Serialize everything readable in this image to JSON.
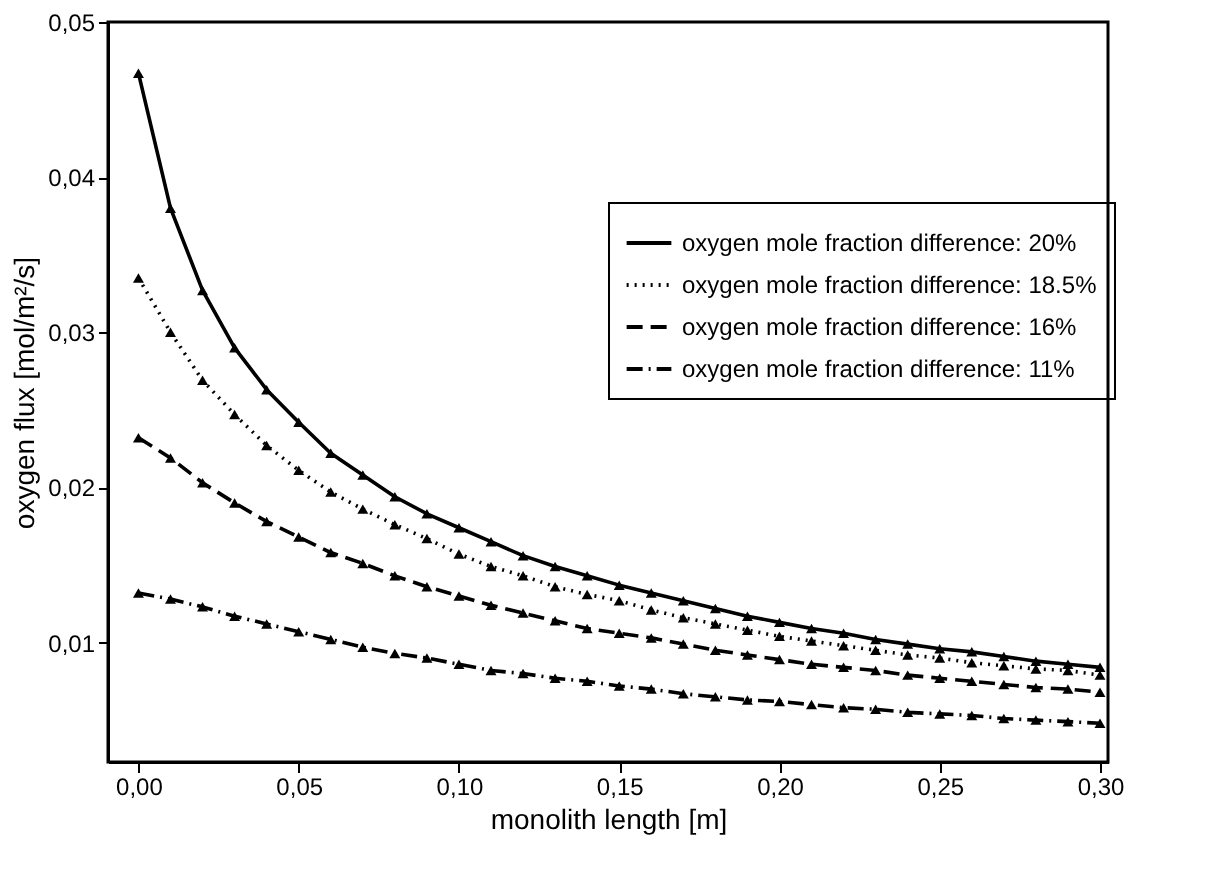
{
  "chart_data": {
    "type": "line",
    "xlabel": "monolith length [m]",
    "ylabel": "oxygen flux [mol/m²/s]",
    "x": [
      0,
      0.01,
      0.02,
      0.03,
      0.04,
      0.05,
      0.06,
      0.07,
      0.08,
      0.09,
      0.1,
      0.11,
      0.12,
      0.13,
      0.14,
      0.15,
      0.16,
      0.17,
      0.18,
      0.19,
      0.2,
      0.21,
      0.22,
      0.23,
      0.24,
      0.25,
      0.26,
      0.27,
      0.28,
      0.29,
      0.3
    ],
    "xlim": [
      -0.0095,
      0.3025
    ],
    "ylim": [
      0.0023,
      0.05
    ],
    "xticks": [
      {
        "value": 0,
        "label": "0,00"
      },
      {
        "value": 0.05,
        "label": "0,05"
      },
      {
        "value": 0.1,
        "label": "0,10"
      },
      {
        "value": 0.15,
        "label": "0,15"
      },
      {
        "value": 0.2,
        "label": "0,20"
      },
      {
        "value": 0.25,
        "label": "0,25"
      },
      {
        "value": 0.3,
        "label": "0,30"
      }
    ],
    "yticks": [
      {
        "value": 0.01,
        "label": "0,01"
      },
      {
        "value": 0.02,
        "label": "0,02"
      },
      {
        "value": 0.03,
        "label": "0,03"
      },
      {
        "value": 0.04,
        "label": "0,04"
      },
      {
        "value": 0.05,
        "label": "0,05"
      }
    ],
    "grid": false,
    "legend": "top right",
    "marker": "triangle",
    "series": [
      {
        "name": "oxygen mole fraction difference: 20%",
        "color": "#000000",
        "line_style": "solid",
        "values": [
          0.0467,
          0.038,
          0.0327,
          0.029,
          0.0263,
          0.0242,
          0.0222,
          0.0208,
          0.0194,
          0.0183,
          0.0174,
          0.0165,
          0.0156,
          0.0149,
          0.0143,
          0.0137,
          0.0132,
          0.0127,
          0.0122,
          0.0117,
          0.0113,
          0.0109,
          0.0106,
          0.0102,
          0.0099,
          0.0096,
          0.0094,
          0.0091,
          0.0088,
          0.0086,
          0.0084
        ]
      },
      {
        "name": "oxygen mole fraction difference: 18.5%",
        "color": "#000000",
        "line_style": "dotted",
        "values": [
          0.0335,
          0.03,
          0.0269,
          0.0247,
          0.0227,
          0.0211,
          0.0197,
          0.0186,
          0.0176,
          0.0167,
          0.0157,
          0.0149,
          0.0143,
          0.0136,
          0.0131,
          0.0127,
          0.0121,
          0.0116,
          0.0112,
          0.0108,
          0.0104,
          0.0101,
          0.0098,
          0.0095,
          0.0092,
          0.009,
          0.0087,
          0.0085,
          0.0083,
          0.0082,
          0.0079
        ]
      },
      {
        "name": "oxygen mole fraction difference: 16%",
        "color": "#000000",
        "line_style": "dashed",
        "values": [
          0.0232,
          0.0219,
          0.0203,
          0.019,
          0.0178,
          0.0168,
          0.0158,
          0.0151,
          0.0143,
          0.0136,
          0.013,
          0.0124,
          0.0119,
          0.0114,
          0.0109,
          0.0106,
          0.0103,
          0.0099,
          0.0095,
          0.0092,
          0.0089,
          0.0086,
          0.0084,
          0.0082,
          0.0079,
          0.0077,
          0.0075,
          0.0073,
          0.0071,
          0.007,
          0.0068
        ]
      },
      {
        "name": "oxygen mole fraction difference: 11%",
        "color": "#000000",
        "line_style": "dashdot",
        "values": [
          0.0132,
          0.0128,
          0.0123,
          0.0117,
          0.0112,
          0.0107,
          0.0102,
          0.0097,
          0.0093,
          0.009,
          0.0086,
          0.0082,
          0.008,
          0.0077,
          0.0075,
          0.0072,
          0.007,
          0.0067,
          0.0065,
          0.0063,
          0.0062,
          0.006,
          0.0058,
          0.0057,
          0.0055,
          0.0054,
          0.0053,
          0.0051,
          0.005,
          0.0049,
          0.0048
        ]
      }
    ]
  }
}
